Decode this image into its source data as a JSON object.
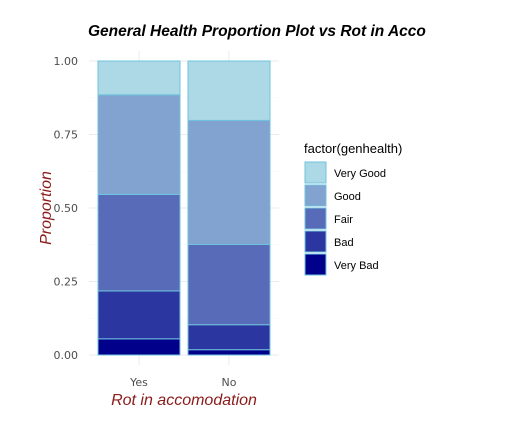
{
  "chart_data": {
    "type": "bar",
    "stacked": true,
    "title": "General Health Proportion Plot vs Rot in Acco",
    "xlabel": "Rot in accomodation",
    "ylabel": "Proportion",
    "categories": [
      "Yes",
      "No"
    ],
    "ylim": [
      0,
      1
    ],
    "yticks": [
      "0.00",
      "0.25",
      "0.50",
      "0.75",
      "1.00"
    ],
    "grid": true,
    "legend": {
      "title": "factor(genhealth)",
      "position": "right"
    },
    "series": [
      {
        "name": "Very Bad",
        "color": "#00008b",
        "values": [
          0.055,
          0.018
        ]
      },
      {
        "name": "Bad",
        "color": "#2c36a0",
        "values": [
          0.163,
          0.085
        ]
      },
      {
        "name": "Fair",
        "color": "#576bb9",
        "values": [
          0.328,
          0.273
        ]
      },
      {
        "name": "Good",
        "color": "#82a3d0",
        "values": [
          0.339,
          0.422
        ]
      },
      {
        "name": "Very Good",
        "color": "#add8e6",
        "values": [
          0.115,
          0.202
        ]
      }
    ],
    "bar_outline_color": "#6fc3dc"
  }
}
